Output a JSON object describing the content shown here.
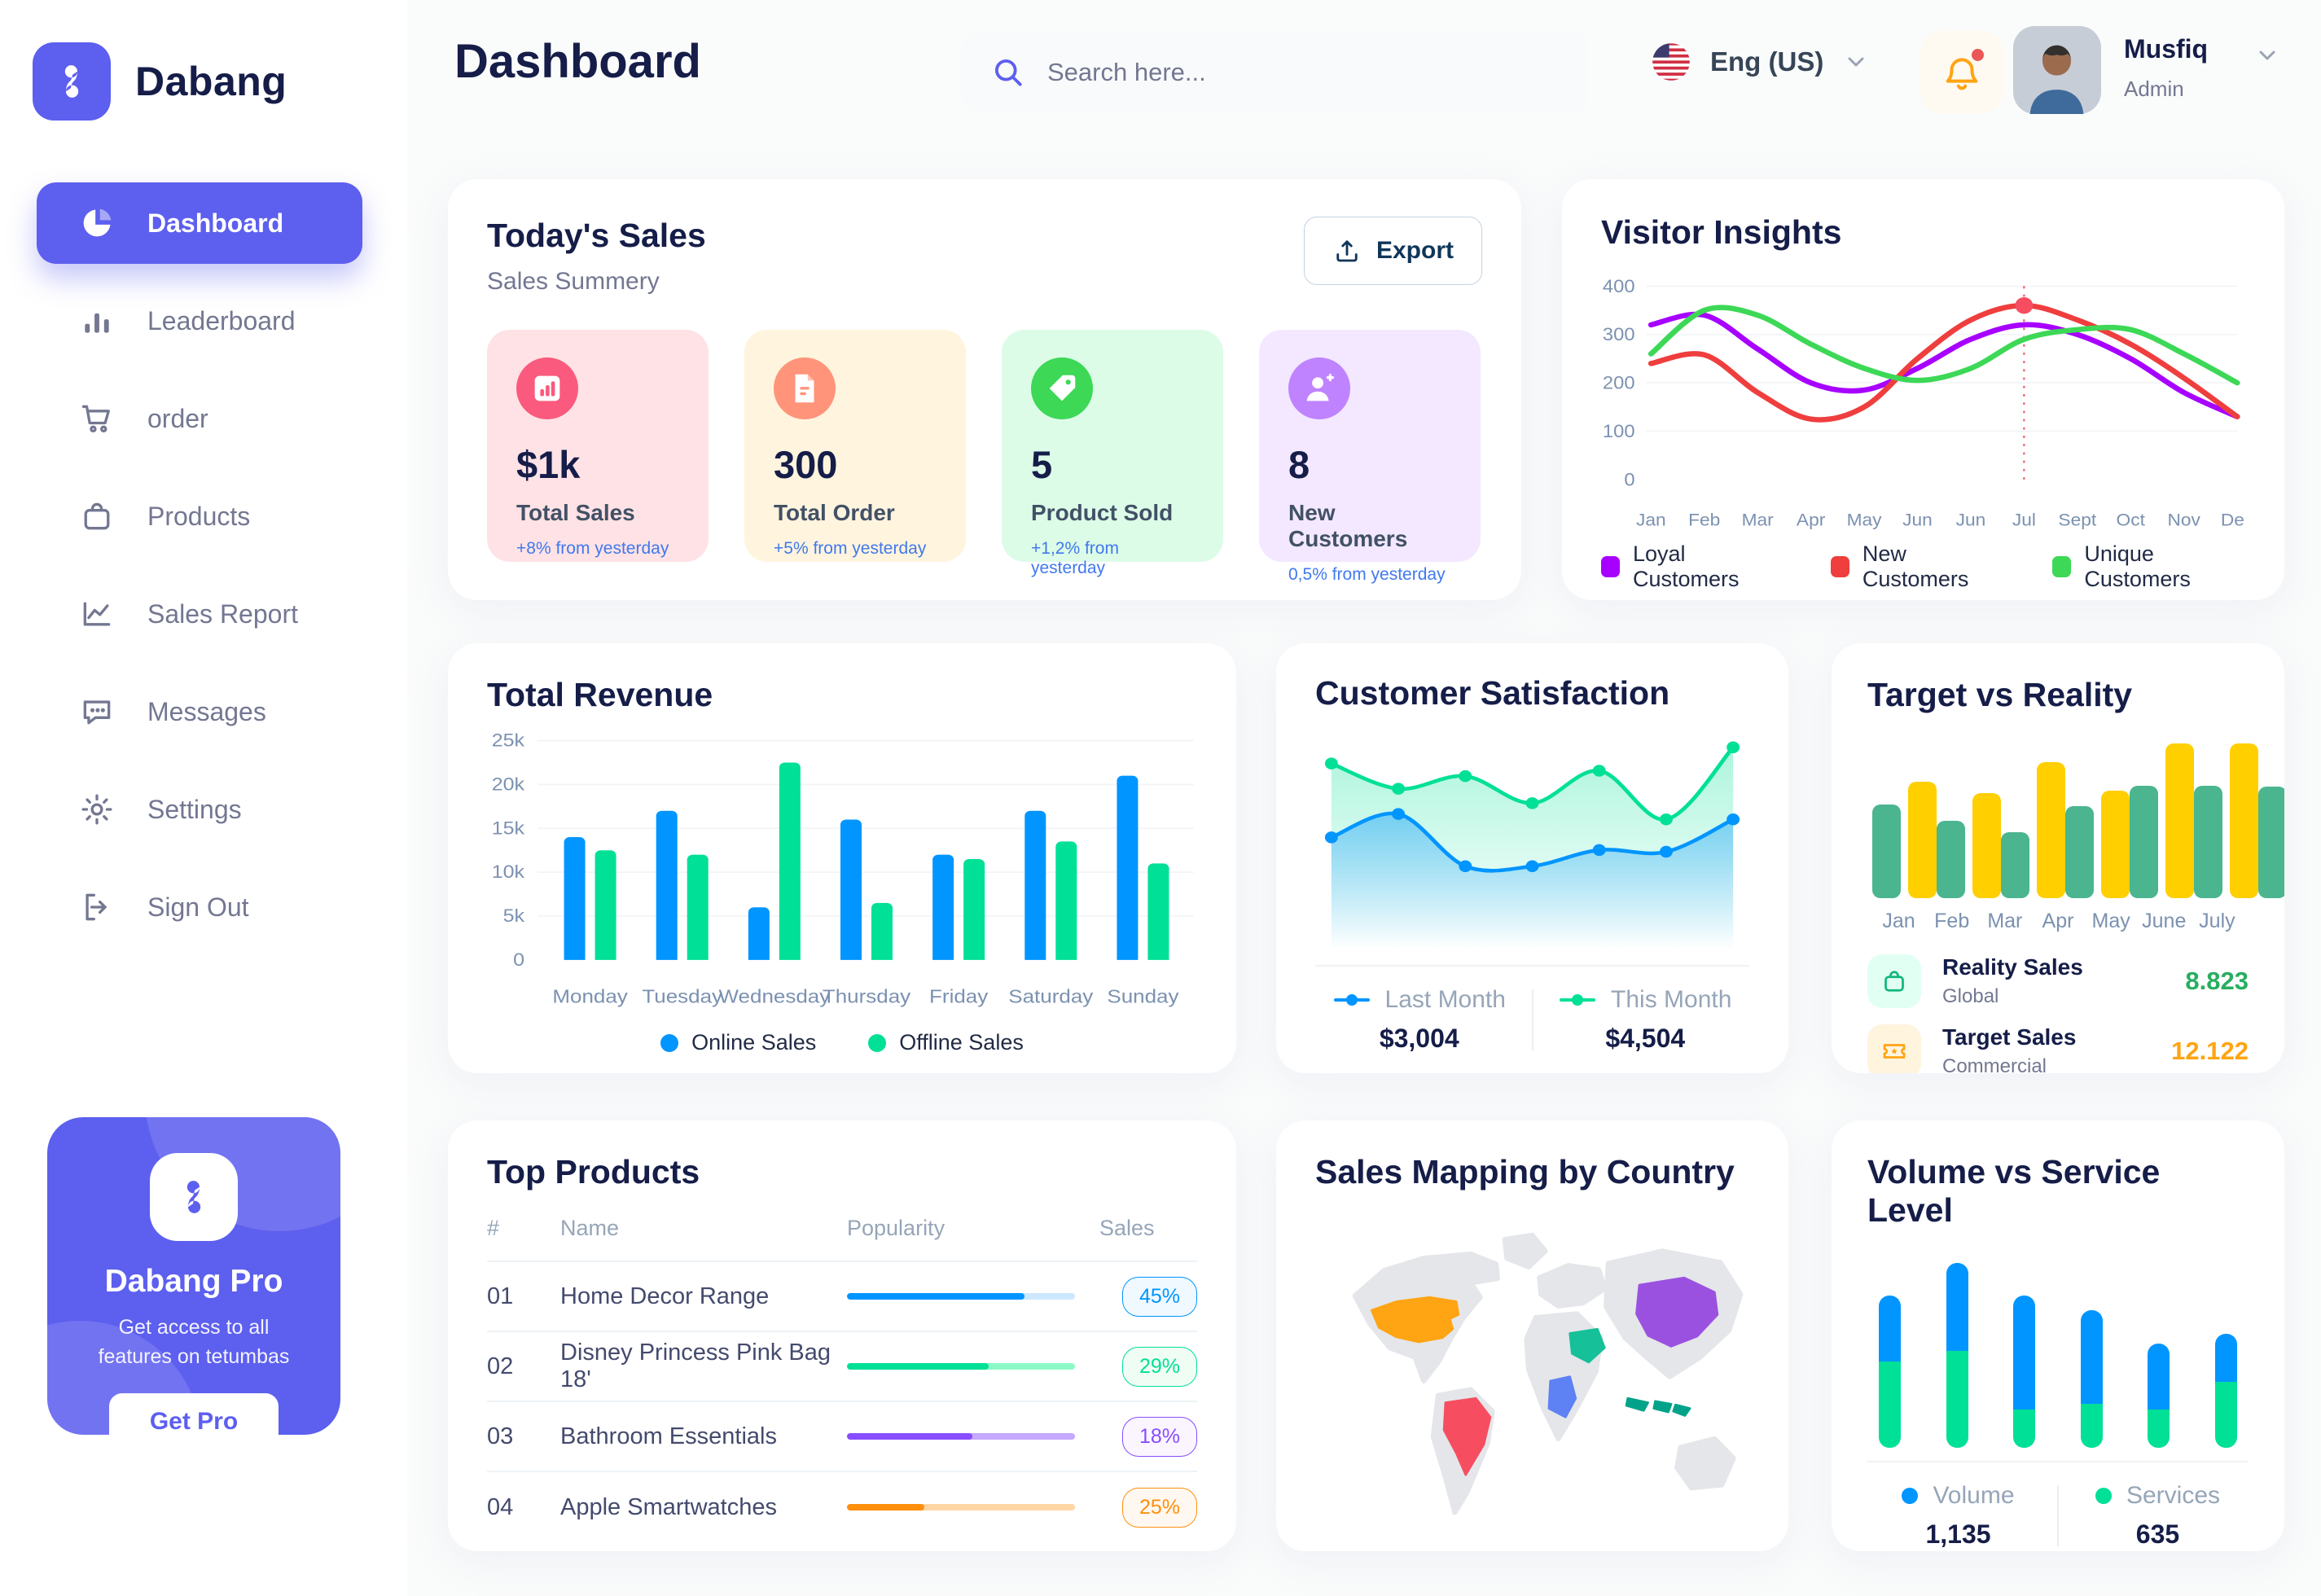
{
  "app": {
    "name": "Dabang"
  },
  "header": {
    "title": "Dashboard",
    "search_placeholder": "Search here...",
    "language": "Eng (US)",
    "user": {
      "name": "Musfiq",
      "role": "Admin"
    }
  },
  "sidebar": {
    "items": [
      {
        "label": "Dashboard",
        "icon": "pie-chart",
        "active": true
      },
      {
        "label": "Leaderboard",
        "icon": "bar-chart",
        "active": false
      },
      {
        "label": "order",
        "icon": "cart",
        "active": false
      },
      {
        "label": "Products",
        "icon": "bag",
        "active": false
      },
      {
        "label": "Sales Report",
        "icon": "line-chart",
        "active": false
      },
      {
        "label": "Messages",
        "icon": "chat",
        "active": false
      },
      {
        "label": "Settings",
        "icon": "gear",
        "active": false
      },
      {
        "label": "Sign Out",
        "icon": "sign-out",
        "active": false
      }
    ],
    "pro": {
      "title": "Dabang Pro",
      "subtitle": "Get access to all features on tetumbas",
      "button": "Get Pro"
    }
  },
  "todays_sales": {
    "title": "Today's Sales",
    "subtitle": "Sales Summery",
    "export_label": "Export",
    "delta_color": "#4079ED",
    "cards": [
      {
        "value": "$1k",
        "label": "Total Sales",
        "delta": "+8% from yesterday",
        "bg": "#FFE2E5",
        "icon_bg": "#FA5A7D",
        "icon": "chart"
      },
      {
        "value": "300",
        "label": "Total Order",
        "delta": "+5% from yesterday",
        "bg": "#FFF4DE",
        "icon_bg": "#FF947A",
        "icon": "file"
      },
      {
        "value": "5",
        "label": "Product Sold",
        "delta": "+1,2% from yesterday",
        "bg": "#DCFCE7",
        "icon_bg": "#3CD856",
        "icon": "tag"
      },
      {
        "value": "8",
        "label": "New Customers",
        "delta": "0,5% from yesterday",
        "bg": "#F3E8FF",
        "icon_bg": "#BF83FF",
        "icon": "user-plus"
      }
    ]
  },
  "panels": {
    "visitor_insights": "Visitor Insights",
    "total_revenue": "Total Revenue",
    "customer_satisfaction": "Customer Satisfaction",
    "target_vs_reality": "Target vs Reality",
    "top_products": "Top Products",
    "sales_mapping": "Sales Mapping by Country",
    "volume_service": "Volume vs Service Level"
  },
  "target_legend": [
    {
      "title": "Reality Sales",
      "sub": "Global",
      "value": "8.823",
      "value_color": "#27AE60",
      "icon_bg": "#E2FFF3",
      "icon": "bag-green"
    },
    {
      "title": "Target Sales",
      "sub": "Commercial",
      "value": "12.122",
      "value_color": "#FFA412",
      "icon_bg": "#FFF4DE",
      "icon": "ticket"
    }
  ],
  "top_products": {
    "headers": [
      "#",
      "Name",
      "Popularity",
      "Sales"
    ],
    "rows": [
      {
        "num": "01",
        "name": "Home Decor Range",
        "popularity": 0.78,
        "sales": "45%",
        "color": "#0095FF",
        "track": "#CDE7FF",
        "badge_bg": "#F0F9FF"
      },
      {
        "num": "02",
        "name": "Disney Princess Pink Bag 18'",
        "popularity": 0.62,
        "sales": "29%",
        "color": "#00E096",
        "track": "#8CFAC7",
        "badge_bg": "#F0FDF4"
      },
      {
        "num": "03",
        "name": "Bathroom Essentials",
        "popularity": 0.55,
        "sales": "18%",
        "color": "#884DFF",
        "track": "#C5A8FF",
        "badge_bg": "#FBF5FF"
      },
      {
        "num": "04",
        "name": "Apple Smartwatches",
        "popularity": 0.34,
        "sales": "25%",
        "color": "#FF8F0D",
        "track": "#FFD5A4",
        "badge_bg": "#FFF8F0"
      }
    ]
  },
  "satisfaction_legend": [
    {
      "label": "Last Month",
      "value": "$3,004",
      "color": "#0095FF"
    },
    {
      "label": "This Month",
      "value": "$4,504",
      "color": "#00E096"
    }
  ],
  "volume_legend": [
    {
      "label": "Volume",
      "value": "1,135",
      "color": "#0095FF"
    },
    {
      "label": "Services",
      "value": "635",
      "color": "#00E096"
    }
  ],
  "chart_data": [
    {
      "id": "visitor_insights",
      "type": "line",
      "title": "Visitor Insights",
      "x": [
        "Jan",
        "Feb",
        "Mar",
        "Apr",
        "May",
        "Jun",
        "Jun",
        "Jul",
        "Sept",
        "Oct",
        "Nov",
        "Des"
      ],
      "ylim": [
        0,
        400
      ],
      "yticks": [
        0,
        100,
        200,
        300,
        400
      ],
      "grid": true,
      "legend_position": "bottom",
      "series": [
        {
          "name": "Loyal Customers",
          "color": "#A700FF",
          "values": [
            320,
            340,
            270,
            200,
            185,
            230,
            290,
            320,
            300,
            250,
            180,
            130
          ]
        },
        {
          "name": "New Customers",
          "color": "#EF3E3E",
          "values": [
            240,
            258,
            180,
            125,
            150,
            250,
            330,
            360,
            330,
            280,
            210,
            130
          ]
        },
        {
          "name": "Unique Customers",
          "color": "#3CD856",
          "values": [
            260,
            350,
            340,
            280,
            230,
            205,
            230,
            290,
            310,
            310,
            260,
            200
          ]
        }
      ],
      "annotation": {
        "x_index": 7,
        "x_label": "Jul",
        "series": "New Customers",
        "value": 360,
        "style": "red-dashed-vertical-line-with-marker"
      }
    },
    {
      "id": "total_revenue",
      "type": "bar",
      "title": "Total Revenue",
      "categories": [
        "Monday",
        "Tuesday",
        "Wednesday",
        "Thursday",
        "Friday",
        "Saturday",
        "Sunday"
      ],
      "ylim": [
        0,
        25000
      ],
      "ytick_labels": [
        "0",
        "5k",
        "10k",
        "15k",
        "20k",
        "25k"
      ],
      "grid": true,
      "legend_position": "bottom",
      "series": [
        {
          "name": "Online Sales",
          "color": "#0095FF",
          "values": [
            14000,
            17000,
            6000,
            16000,
            12000,
            17000,
            21000
          ]
        },
        {
          "name": "Offline Sales",
          "color": "#00E096",
          "values": [
            12500,
            12000,
            22500,
            6500,
            11500,
            13500,
            11000
          ]
        }
      ]
    },
    {
      "id": "customer_satisfaction",
      "type": "area",
      "title": "Customer Satisfaction",
      "x": [
        1,
        2,
        3,
        4,
        5,
        6,
        7
      ],
      "ylim": [
        0,
        100
      ],
      "legend_position": "bottom",
      "series": [
        {
          "name": "Last Month",
          "color": "#0095FF",
          "total": "$3,004",
          "values": [
            48,
            61,
            32,
            32,
            41,
            40,
            58
          ]
        },
        {
          "name": "This Month",
          "color": "#00E096",
          "total": "$4,504",
          "values": [
            89,
            75,
            82,
            67,
            85,
            58,
            98
          ]
        }
      ]
    },
    {
      "id": "target_vs_reality",
      "type": "bar",
      "title": "Target vs Reality",
      "categories": [
        "Jan",
        "Feb",
        "Mar",
        "Apr",
        "May",
        "June",
        "July"
      ],
      "ylim": [
        0,
        14
      ],
      "series": [
        {
          "name": "Reality Sales",
          "color": "#4AB58E",
          "values": [
            8.5,
            7,
            6,
            8.3,
            10.2,
            10.2,
            10.1
          ]
        },
        {
          "name": "Target Sales",
          "color": "#FFCF00",
          "values": [
            10.5,
            9.5,
            12.3,
            9.7,
            14,
            14,
            14
          ]
        }
      ]
    },
    {
      "id": "volume_service",
      "type": "stacked-bar",
      "title": "Volume vs Service Level",
      "categories": [
        "1",
        "2",
        "3",
        "4",
        "5",
        "6"
      ],
      "series": [
        {
          "name": "Volume",
          "color": "#0095FF",
          "values": [
            36,
            48,
            62,
            51,
            36,
            26
          ]
        },
        {
          "name": "Services",
          "color": "#00E096",
          "values": [
            47,
            53,
            21,
            24,
            21,
            36
          ]
        }
      ],
      "totals": {
        "Volume": "1,135",
        "Services": "635"
      }
    },
    {
      "id": "sales_mapping",
      "type": "map",
      "title": "Sales Mapping by Country",
      "base_color": "#E4E6EA",
      "countries": [
        {
          "name": "United States",
          "color": "#FFA412"
        },
        {
          "name": "Brazil",
          "color": "#F64E60"
        },
        {
          "name": "Dem. Rep. Congo",
          "color": "#5E81F4"
        },
        {
          "name": "Saudi Arabia",
          "color": "#16C098"
        },
        {
          "name": "China",
          "color": "#9B51E0"
        },
        {
          "name": "Indonesia",
          "color": "#00A389"
        }
      ]
    }
  ]
}
